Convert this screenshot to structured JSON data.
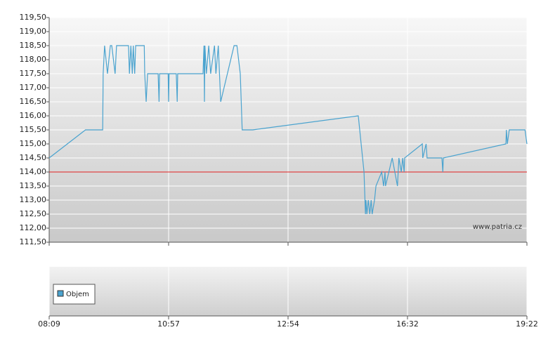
{
  "chart_data": {
    "type": "line",
    "x": [
      0,
      7.6,
      11.2,
      11.3,
      11.6,
      12.2,
      12.8,
      13.1,
      13.8,
      14.1,
      16.6,
      16.8,
      17.1,
      17.4,
      17.6,
      17.9,
      18.1,
      18.2,
      19.9,
      20.0,
      20.3,
      20.6,
      22.8,
      23.0,
      23.1,
      24.9,
      25.0,
      25.1,
      26.6,
      26.8,
      26.9,
      32.2,
      32.4,
      32.5,
      32.6,
      32.9,
      33.4,
      33.8,
      34.6,
      34.9,
      35.4,
      35.9,
      38.7,
      39.3,
      40.0,
      40.4,
      42.6,
      64.7,
      65.3,
      65.6,
      65.9,
      66.0,
      66.2,
      66.3,
      66.5,
      66.8,
      67.1,
      67.4,
      67.6,
      68.1,
      68.4,
      69.6,
      70.0,
      70.3,
      70.4,
      71.8,
      72.9,
      73.2,
      73.7,
      74.0,
      74.3,
      74.4,
      78.1,
      78.2,
      78.9,
      79.1,
      82.2,
      82.4,
      82.5,
      95.6,
      95.7,
      95.9,
      96.3,
      99.6,
      100
    ],
    "values": [
      114.5,
      115.5,
      115.5,
      117.5,
      118.5,
      117.5,
      118.5,
      118.5,
      117.5,
      118.5,
      118.5,
      117.5,
      118.5,
      117.5,
      118.5,
      117.5,
      118.5,
      118.5,
      118.5,
      117.5,
      116.5,
      117.5,
      117.5,
      116.5,
      117.5,
      117.5,
      116.5,
      117.5,
      117.5,
      116.5,
      117.5,
      117.5,
      118.5,
      116.5,
      118.5,
      117.5,
      118.5,
      117.5,
      118.5,
      117.5,
      118.5,
      116.5,
      118.5,
      118.5,
      117.5,
      115.5,
      115.5,
      116.0,
      115.0,
      114.5,
      114.0,
      113.5,
      112.5,
      113.0,
      112.5,
      113.0,
      112.5,
      113.0,
      112.5,
      113.0,
      113.5,
      114.0,
      113.5,
      114.0,
      113.5,
      114.5,
      113.5,
      114.5,
      114.0,
      114.5,
      114.0,
      114.5,
      115.0,
      114.5,
      115.0,
      114.5,
      114.5,
      114.0,
      114.5,
      115.0,
      115.5,
      115.0,
      115.5,
      115.5,
      115.0
    ],
    "color": "#4aa3cf",
    "xlim": [
      0,
      100
    ],
    "xticks": [
      {
        "value": 0,
        "label": "08:09"
      },
      {
        "value": 25,
        "label": "10:57"
      },
      {
        "value": 50,
        "label": "12:54"
      },
      {
        "value": 75,
        "label": "16:32"
      },
      {
        "value": 100,
        "label": "19:22"
      }
    ],
    "ylim": [
      111.5,
      119.5
    ],
    "yticks": [
      {
        "value": 111.5,
        "label": "111,50"
      },
      {
        "value": 112,
        "label": "112,00"
      },
      {
        "value": 112.5,
        "label": "112,50"
      },
      {
        "value": 113,
        "label": "113,00"
      },
      {
        "value": 113.5,
        "label": "113,50"
      },
      {
        "value": 114,
        "label": "114,00"
      },
      {
        "value": 114.5,
        "label": "114,50"
      },
      {
        "value": 115,
        "label": "115,00"
      },
      {
        "value": 115.5,
        "label": "115,50"
      },
      {
        "value": 116,
        "label": "116,00"
      },
      {
        "value": 116.5,
        "label": "116,50"
      },
      {
        "value": 117,
        "label": "117,00"
      },
      {
        "value": 117.5,
        "label": "117,50"
      },
      {
        "value": 118,
        "label": "118,00"
      },
      {
        "value": 118.5,
        "label": "118,50"
      },
      {
        "value": 119,
        "label": "119,00"
      },
      {
        "value": 119.5,
        "label": "119,50"
      }
    ],
    "reference_line": {
      "value": 114,
      "color": "#e02020"
    },
    "grid": true,
    "watermark": "www.patria.cz",
    "volume_legend": {
      "name": "Objem",
      "color": "#4aa3cf"
    }
  }
}
